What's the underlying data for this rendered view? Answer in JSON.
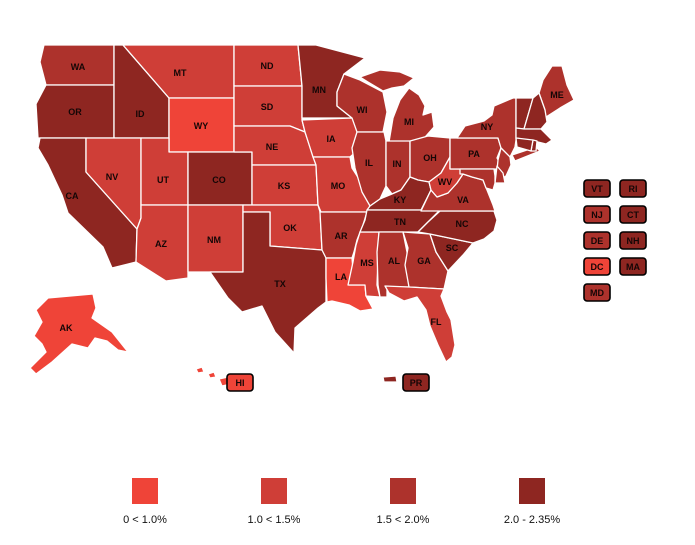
{
  "colors": {
    "background": "#ffffff",
    "state_border": "#ffffff",
    "label_text": "#140606",
    "inset_border": "#000000",
    "category_colors": [
      "#ef4438",
      "#cf3e37",
      "#ad322c",
      "#8e2621"
    ]
  },
  "legend": {
    "items": [
      {
        "label": "0 < 1.0%",
        "category": 1
      },
      {
        "label": "1.0 < 1.5%",
        "category": 2
      },
      {
        "label": "1.5 < 2.0%",
        "category": 3
      },
      {
        "label": "2.0 - 2.35%",
        "category": 4
      }
    ]
  },
  "map": {
    "states": [
      {
        "id": "WA",
        "label": "WA",
        "category": 3
      },
      {
        "id": "OR",
        "label": "OR",
        "category": 4
      },
      {
        "id": "CA",
        "label": "CA",
        "category": 4
      },
      {
        "id": "ID",
        "label": "ID",
        "category": 4
      },
      {
        "id": "NV",
        "label": "NV",
        "category": 2
      },
      {
        "id": "MT",
        "label": "MT",
        "category": 2
      },
      {
        "id": "WY",
        "label": "WY",
        "category": 1
      },
      {
        "id": "UT",
        "label": "UT",
        "category": 2
      },
      {
        "id": "CO",
        "label": "CO",
        "category": 4
      },
      {
        "id": "AZ",
        "label": "AZ",
        "category": 2
      },
      {
        "id": "NM",
        "label": "NM",
        "category": 2
      },
      {
        "id": "ND",
        "label": "ND",
        "category": 2
      },
      {
        "id": "SD",
        "label": "SD",
        "category": 2
      },
      {
        "id": "NE",
        "label": "NE",
        "category": 2
      },
      {
        "id": "KS",
        "label": "KS",
        "category": 2
      },
      {
        "id": "OK",
        "label": "OK",
        "category": 2
      },
      {
        "id": "TX",
        "label": "TX",
        "category": 4
      },
      {
        "id": "MN",
        "label": "MN",
        "category": 4
      },
      {
        "id": "IA",
        "label": "IA",
        "category": 2
      },
      {
        "id": "MO",
        "label": "MO",
        "category": 2
      },
      {
        "id": "AR",
        "label": "AR",
        "category": 3
      },
      {
        "id": "LA",
        "label": "LA",
        "category": 1
      },
      {
        "id": "WI",
        "label": "WI",
        "category": 3
      },
      {
        "id": "IL",
        "label": "IL",
        "category": 3
      },
      {
        "id": "MS",
        "label": "MS",
        "category": 2
      },
      {
        "id": "MI",
        "label": "MI",
        "category": 3
      },
      {
        "id": "IN",
        "label": "IN",
        "category": 3
      },
      {
        "id": "OH",
        "label": "OH",
        "category": 3
      },
      {
        "id": "KY",
        "label": "KY",
        "category": 4
      },
      {
        "id": "TN",
        "label": "TN",
        "category": 4
      },
      {
        "id": "AL",
        "label": "AL",
        "category": 3
      },
      {
        "id": "GA",
        "label": "GA",
        "category": 3
      },
      {
        "id": "FL",
        "label": "FL",
        "category": 2
      },
      {
        "id": "SC",
        "label": "SC",
        "category": 4
      },
      {
        "id": "NC",
        "label": "NC",
        "category": 4
      },
      {
        "id": "VA",
        "label": "VA",
        "category": 3
      },
      {
        "id": "WV",
        "label": "WV",
        "category": 2
      },
      {
        "id": "PA",
        "label": "PA",
        "category": 3
      },
      {
        "id": "NY",
        "label": "NY",
        "category": 3
      },
      {
        "id": "ME",
        "label": "ME",
        "category": 3
      },
      {
        "id": "VT",
        "label": "VT",
        "category": 4
      },
      {
        "id": "NH",
        "label": "NH",
        "category": 4
      },
      {
        "id": "MA",
        "label": "MA",
        "category": 4
      },
      {
        "id": "RI",
        "label": "RI",
        "category": 4
      },
      {
        "id": "CT",
        "label": "CT",
        "category": 4
      },
      {
        "id": "NJ",
        "label": "NJ",
        "category": 3
      },
      {
        "id": "DE",
        "label": "DE",
        "category": 3
      },
      {
        "id": "MD",
        "label": "MD",
        "category": 3
      },
      {
        "id": "DC",
        "label": "DC",
        "category": 1
      },
      {
        "id": "AK",
        "label": "AK",
        "category": 1
      },
      {
        "id": "HI",
        "label": "HI",
        "category": 1
      },
      {
        "id": "PR",
        "label": "PR",
        "category": 4
      }
    ],
    "insets": [
      "VT",
      "RI",
      "NJ",
      "CT",
      "DE",
      "NH",
      "DC",
      "MA",
      "MD",
      "HI",
      "PR"
    ]
  }
}
